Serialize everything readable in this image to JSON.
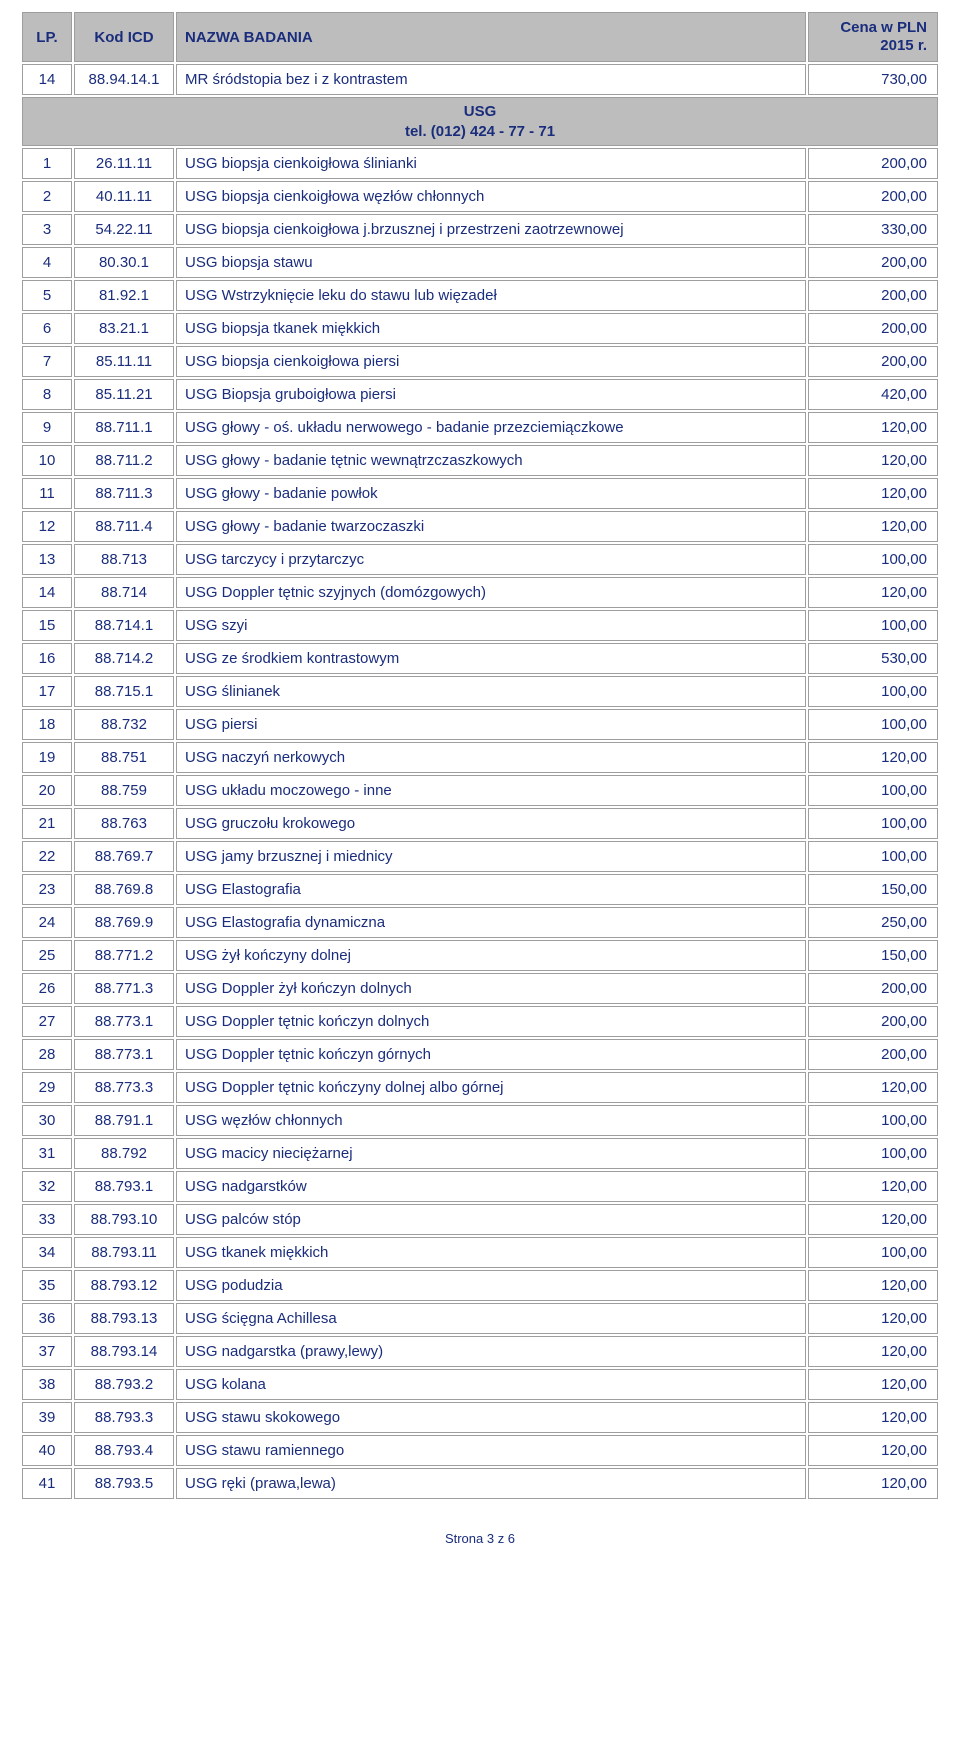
{
  "header": {
    "lp": "LP.",
    "code": "Kod ICD",
    "name": "NAZWA BADANIA",
    "price_line1": "Cena w PLN",
    "price_line2": "2015 r."
  },
  "pre_rows": [
    {
      "lp": "14",
      "code": "88.94.14.1",
      "name": "MR śródstopia bez i z kontrastem",
      "price": "730,00"
    }
  ],
  "section": {
    "title": "USG",
    "subtitle": "tel. (012) 424 - 77 - 71"
  },
  "rows": [
    {
      "lp": "1",
      "code": "26.11.11",
      "name": "USG biopsja cienkoigłowa ślinianki",
      "price": "200,00"
    },
    {
      "lp": "2",
      "code": "40.11.11",
      "name": "USG biopsja cienkoigłowa węzłów chłonnych",
      "price": "200,00"
    },
    {
      "lp": "3",
      "code": "54.22.11",
      "name": "USG biopsja cienkoigłowa j.brzusznej i przestrzeni zaotrzewnowej",
      "price": "330,00"
    },
    {
      "lp": "4",
      "code": "80.30.1",
      "name": "USG biopsja stawu",
      "price": "200,00"
    },
    {
      "lp": "5",
      "code": "81.92.1",
      "name": "USG Wstrzyknięcie leku do stawu lub więzadeł",
      "price": "200,00"
    },
    {
      "lp": "6",
      "code": "83.21.1",
      "name": "USG biopsja tkanek miękkich",
      "price": "200,00"
    },
    {
      "lp": "7",
      "code": "85.11.11",
      "name": "USG biopsja cienkoigłowa piersi",
      "price": "200,00"
    },
    {
      "lp": "8",
      "code": "85.11.21",
      "name": " USG Biopsja gruboigłowa piersi",
      "price": "420,00"
    },
    {
      "lp": "9",
      "code": "88.711.1",
      "name": "USG głowy - oś. układu nerwowego - badanie przezciemiączkowe",
      "price": "120,00"
    },
    {
      "lp": "10",
      "code": "88.711.2",
      "name": "USG głowy - badanie tętnic wewnątrzczaszkowych",
      "price": "120,00"
    },
    {
      "lp": "11",
      "code": "88.711.3",
      "name": "USG głowy - badanie powłok",
      "price": "120,00"
    },
    {
      "lp": "12",
      "code": "88.711.4",
      "name": "USG głowy - badanie twarzoczaszki",
      "price": "120,00"
    },
    {
      "lp": "13",
      "code": "88.713",
      "name": "USG tarczycy i przytarczyc",
      "price": "100,00"
    },
    {
      "lp": "14",
      "code": "88.714",
      "name": "USG Doppler tętnic szyjnych (domózgowych)",
      "price": "120,00"
    },
    {
      "lp": "15",
      "code": "88.714.1",
      "name": "USG szyi",
      "price": "100,00"
    },
    {
      "lp": "16",
      "code": "88.714.2",
      "name": "USG ze środkiem kontrastowym",
      "price": "530,00"
    },
    {
      "lp": "17",
      "code": "88.715.1",
      "name": "USG ślinianek",
      "price": "100,00"
    },
    {
      "lp": "18",
      "code": "88.732",
      "name": "USG piersi",
      "price": "100,00"
    },
    {
      "lp": "19",
      "code": "88.751",
      "name": "USG naczyń nerkowych",
      "price": "120,00"
    },
    {
      "lp": "20",
      "code": "88.759",
      "name": "USG układu moczowego - inne",
      "price": "100,00"
    },
    {
      "lp": "21",
      "code": "88.763",
      "name": "USG gruczołu krokowego",
      "price": "100,00"
    },
    {
      "lp": "22",
      "code": "88.769.7",
      "name": "USG jamy brzusznej i miednicy",
      "price": "100,00"
    },
    {
      "lp": "23",
      "code": "88.769.8",
      "name": "USG Elastografia",
      "price": "150,00"
    },
    {
      "lp": "24",
      "code": "88.769.9",
      "name": "USG Elastografia dynamiczna",
      "price": "250,00"
    },
    {
      "lp": "25",
      "code": "88.771.2",
      "name": "USG żył kończyny dolnej",
      "price": "150,00"
    },
    {
      "lp": "26",
      "code": "88.771.3",
      "name": "USG Doppler żył kończyn dolnych",
      "price": "200,00"
    },
    {
      "lp": "27",
      "code": "88.773.1",
      "name": "USG Doppler tętnic kończyn dolnych",
      "price": "200,00"
    },
    {
      "lp": "28",
      "code": "88.773.1",
      "name": "USG Doppler tętnic kończyn górnych",
      "price": "200,00"
    },
    {
      "lp": "29",
      "code": "88.773.3",
      "name": "USG Doppler tętnic kończyny dolnej albo górnej",
      "price": "120,00"
    },
    {
      "lp": "30",
      "code": "88.791.1",
      "name": "USG węzłów chłonnych",
      "price": "100,00"
    },
    {
      "lp": "31",
      "code": "88.792",
      "name": "USG macicy nieciężarnej",
      "price": "100,00"
    },
    {
      "lp": "32",
      "code": "88.793.1",
      "name": "USG nadgarstków",
      "price": "120,00"
    },
    {
      "lp": "33",
      "code": "88.793.10",
      "name": "USG palców stóp",
      "price": "120,00"
    },
    {
      "lp": "34",
      "code": "88.793.11",
      "name": "USG tkanek miękkich",
      "price": "100,00"
    },
    {
      "lp": "35",
      "code": "88.793.12",
      "name": "USG podudzia",
      "price": "120,00"
    },
    {
      "lp": "36",
      "code": "88.793.13",
      "name": "USG ścięgna Achillesa",
      "price": "120,00"
    },
    {
      "lp": "37",
      "code": "88.793.14",
      "name": "USG nadgarstka (prawy,lewy)",
      "price": "120,00"
    },
    {
      "lp": "38",
      "code": "88.793.2",
      "name": "USG kolana",
      "price": "120,00"
    },
    {
      "lp": "39",
      "code": "88.793.3",
      "name": "USG stawu skokowego",
      "price": "120,00"
    },
    {
      "lp": "40",
      "code": "88.793.4",
      "name": "USG stawu ramiennego",
      "price": "120,00"
    },
    {
      "lp": "41",
      "code": "88.793.5",
      "name": "USG ręki (prawa,lewa)",
      "price": "120,00"
    }
  ],
  "footer": "Strona 3 z 6"
}
